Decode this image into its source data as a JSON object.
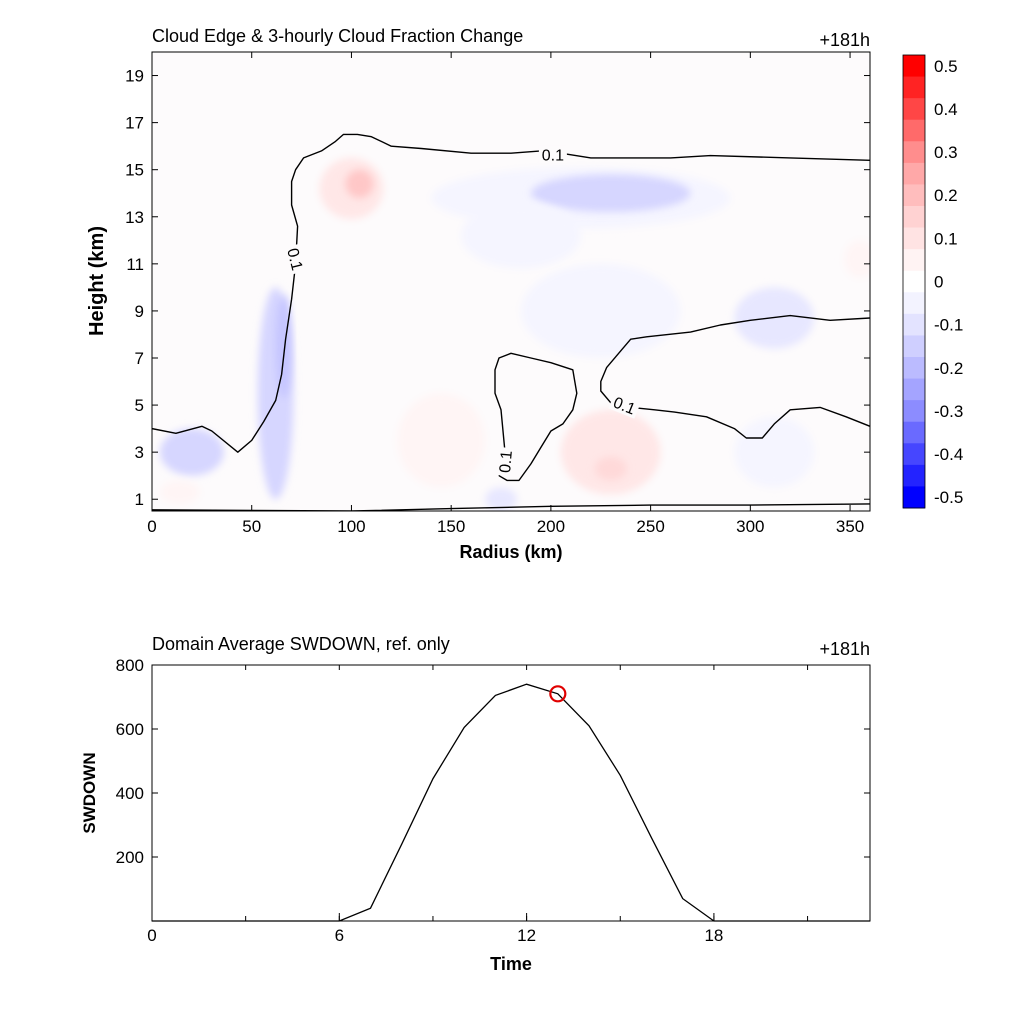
{
  "chart_data": [
    {
      "type": "heatmap",
      "title": "Cloud Edge & 3-hourly Cloud Fraction Change",
      "time_label": "+181h",
      "xlabel": "Radius (km)",
      "ylabel": "Height (km)",
      "xlim": [
        0,
        360
      ],
      "ylim": [
        0.5,
        20
      ],
      "xticks": [
        0,
        50,
        100,
        150,
        200,
        250,
        300,
        350
      ],
      "yticks": [
        1,
        3,
        5,
        7,
        9,
        11,
        13,
        15,
        17,
        19
      ],
      "colorbar": {
        "levels": [
          0.5,
          0.45,
          0.4,
          0.35,
          0.3,
          0.25,
          0.2,
          0.15,
          0.1,
          0.05,
          -0.05,
          -0.1,
          -0.15,
          -0.2,
          -0.25,
          -0.3,
          -0.35,
          -0.4,
          -0.45,
          -0.5
        ],
        "labels": [
          "0.5",
          "0.4",
          "0.3",
          "0.2",
          "0.1",
          "0",
          "-0.1",
          "-0.2",
          "-0.3",
          "-0.4",
          "-0.5"
        ],
        "colors": [
          "#ff0000",
          "#ff2323",
          "#ff4646",
          "#ff6a6a",
          "#ff8d8d",
          "#ffa8a8",
          "#ffbdbd",
          "#ffd2d2",
          "#ffe3e3",
          "#fff3f3",
          "#ffffff",
          "#f3f3ff",
          "#e3e3ff",
          "#cfcfff",
          "#bbbbff",
          "#a4a4ff",
          "#8c8cff",
          "#6a6aff",
          "#4646ff",
          "#2323ff",
          "#0000ff"
        ]
      },
      "anomalies": [
        {
          "cx": 20,
          "cy": 3.0,
          "rx": 16,
          "ry": 1.0,
          "level": -0.17
        },
        {
          "cx": 14,
          "cy": 1.3,
          "rx": 10,
          "ry": 0.5,
          "level": 0.06
        },
        {
          "cx": 62,
          "cy": 5.5,
          "rx": 9,
          "ry": 4.5,
          "level": -0.13
        },
        {
          "cx": 66,
          "cy": 7.5,
          "rx": 4,
          "ry": 2.2,
          "level": -0.2
        },
        {
          "cx": 100,
          "cy": 14.2,
          "rx": 16,
          "ry": 1.3,
          "level": 0.1
        },
        {
          "cx": 104,
          "cy": 14.4,
          "rx": 7,
          "ry": 0.6,
          "level": 0.22
        },
        {
          "cx": 215,
          "cy": 13.8,
          "rx": 75,
          "ry": 1.3,
          "level": -0.07
        },
        {
          "cx": 230,
          "cy": 14.0,
          "rx": 40,
          "ry": 0.8,
          "level": -0.13
        },
        {
          "cx": 185,
          "cy": 12.2,
          "rx": 30,
          "ry": 1.4,
          "level": -0.05
        },
        {
          "cx": 145,
          "cy": 3.5,
          "rx": 22,
          "ry": 2.0,
          "level": 0.07
        },
        {
          "cx": 230,
          "cy": 3.0,
          "rx": 25,
          "ry": 1.8,
          "level": 0.09
        },
        {
          "cx": 230,
          "cy": 2.3,
          "rx": 8,
          "ry": 0.5,
          "level": 0.16
        },
        {
          "cx": 312,
          "cy": 8.7,
          "rx": 20,
          "ry": 1.3,
          "level": -0.1
        },
        {
          "cx": 312,
          "cy": 3.0,
          "rx": 20,
          "ry": 1.5,
          "level": -0.06
        },
        {
          "cx": 175,
          "cy": 1.0,
          "rx": 8,
          "ry": 0.5,
          "level": -0.08
        },
        {
          "cx": 355,
          "cy": 11.2,
          "rx": 8,
          "ry": 0.8,
          "level": 0.06
        },
        {
          "cx": 225,
          "cy": 9.0,
          "rx": 40,
          "ry": 2.0,
          "level": -0.04
        }
      ],
      "contours": [
        {
          "label": "0.1",
          "points": [
            [
              0,
              4.0
            ],
            [
              12,
              3.8
            ],
            [
              25,
              4.1
            ],
            [
              30,
              3.9
            ],
            [
              43,
              3.0
            ],
            [
              50,
              3.5
            ],
            [
              56,
              4.3
            ],
            [
              62,
              5.2
            ],
            [
              65,
              6.3
            ],
            [
              67,
              7.8
            ],
            [
              70,
              9.5
            ],
            [
              72,
              11.0
            ],
            [
              73,
              12.6
            ],
            [
              70,
              13.5
            ],
            [
              70,
              14.5
            ],
            [
              72,
              15.0
            ],
            [
              76,
              15.5
            ],
            [
              85,
              15.8
            ],
            [
              92,
              16.2
            ],
            [
              96,
              16.5
            ],
            [
              103,
              16.5
            ],
            [
              110,
              16.4
            ],
            [
              120,
              16.0
            ],
            [
              135,
              15.9
            ],
            [
              160,
              15.7
            ],
            [
              180,
              15.7
            ],
            [
              195,
              15.8
            ],
            [
              205,
              15.7
            ],
            [
              220,
              15.5
            ],
            [
              260,
              15.5
            ],
            [
              280,
              15.6
            ],
            [
              320,
              15.5
            ],
            [
              360,
              15.4
            ]
          ]
        },
        {
          "label": "0.1",
          "points": [
            [
              174,
              2.0
            ],
            [
              176,
              2.6
            ],
            [
              177,
              3.0
            ],
            [
              175,
              4.8
            ],
            [
              172,
              5.5
            ],
            [
              172,
              6.5
            ],
            [
              174,
              7.0
            ],
            [
              180,
              7.2
            ],
            [
              190,
              7.0
            ],
            [
              200,
              6.8
            ],
            [
              211,
              6.5
            ],
            [
              213,
              5.5
            ],
            [
              211,
              4.8
            ],
            [
              206,
              4.2
            ],
            [
              200,
              3.9
            ],
            [
              195,
              3.2
            ],
            [
              190,
              2.5
            ],
            [
              184,
              1.8
            ],
            [
              178,
              1.8
            ],
            [
              174,
              2.0
            ]
          ]
        },
        {
          "label": "0.1",
          "points": [
            [
              360,
              8.7
            ],
            [
              340,
              8.6
            ],
            [
              320,
              8.8
            ],
            [
              300,
              8.6
            ],
            [
              285,
              8.4
            ],
            [
              270,
              8.1
            ],
            [
              248,
              7.9
            ],
            [
              240,
              7.8
            ],
            [
              236,
              7.4
            ],
            [
              228,
              6.6
            ],
            [
              225,
              6.0
            ],
            [
              225,
              5.6
            ],
            [
              231,
              5.0
            ],
            [
              240,
              4.9
            ],
            [
              252,
              4.8
            ],
            [
              262,
              4.7
            ],
            [
              278,
              4.5
            ],
            [
              292,
              4.0
            ],
            [
              298,
              3.6
            ],
            [
              306,
              3.6
            ],
            [
              312,
              4.2
            ],
            [
              320,
              4.8
            ],
            [
              335,
              4.9
            ],
            [
              348,
              4.5
            ],
            [
              360,
              4.1
            ]
          ]
        },
        {
          "label": "",
          "points": [
            [
              0,
              0.55
            ],
            [
              100,
              0.5
            ],
            [
              150,
              0.6
            ],
            [
              200,
              0.7
            ],
            [
              250,
              0.75
            ],
            [
              300,
              0.75
            ],
            [
              360,
              0.8
            ]
          ]
        }
      ],
      "contour_labels": [
        {
          "text": "0.1",
          "x": 201,
          "y": 15.65,
          "rotate": 0
        },
        {
          "text": "0.1",
          "x": 72,
          "y": 11.2,
          "rotate": 76
        },
        {
          "text": "0.1",
          "x": 177,
          "y": 2.6,
          "rotate": -85
        },
        {
          "text": "0.1",
          "x": 237,
          "y": 5.0,
          "rotate": 22
        }
      ]
    },
    {
      "type": "line",
      "title": "Domain Average SWDOWN, ref. only",
      "time_label": "+181h",
      "xlabel": "Time",
      "ylabel": "SWDOWN",
      "xlim": [
        0,
        23
      ],
      "ylim": [
        0,
        800
      ],
      "xticks": [
        0,
        6,
        12,
        18
      ],
      "yticks": [
        200,
        400,
        600,
        800
      ],
      "x": [
        0,
        1,
        2,
        3,
        4,
        5,
        6,
        7,
        8,
        9,
        10,
        11,
        12,
        13,
        14,
        15,
        16,
        17,
        18,
        19,
        20,
        21,
        22,
        23
      ],
      "values": [
        0,
        0,
        0,
        0,
        0,
        0,
        0,
        40,
        240,
        445,
        605,
        705,
        740,
        710,
        610,
        455,
        260,
        70,
        0,
        0,
        0,
        0,
        0,
        0
      ],
      "marker": {
        "x": 13,
        "y": 710,
        "color": "#e00000"
      }
    }
  ]
}
